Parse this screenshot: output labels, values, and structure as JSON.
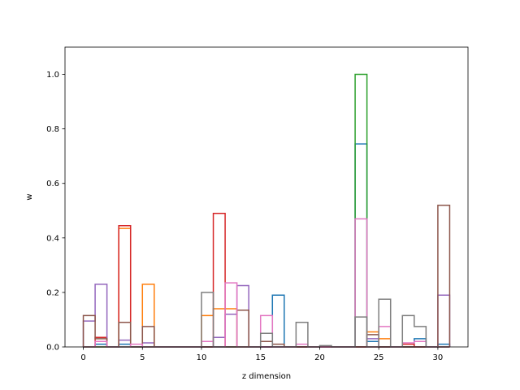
{
  "chart_data": {
    "type": "step-histogram",
    "title": "",
    "xlabel": "z dimension",
    "ylabel": "w",
    "xlim": [
      -1.55,
      32.55
    ],
    "ylim": [
      0,
      1.1
    ],
    "xticks": [
      0,
      5,
      10,
      15,
      20,
      25,
      30
    ],
    "yticks": [
      0.0,
      0.2,
      0.4,
      0.6,
      0.8,
      1.0
    ],
    "ytick_labels": [
      "0.0",
      "0.2",
      "0.4",
      "0.6",
      "0.8",
      "1.0"
    ],
    "bin_edges": [
      0,
      1,
      2,
      3,
      4,
      5,
      6,
      7,
      8,
      9,
      10,
      11,
      12,
      13,
      14,
      15,
      16,
      17,
      18,
      19,
      20,
      21,
      22,
      23,
      24,
      25,
      26,
      27,
      28,
      29,
      30,
      31
    ],
    "series": [
      {
        "color": "#1f77b4",
        "values": [
          0,
          0.01,
          0,
          0.01,
          0,
          0,
          0,
          0,
          0,
          0,
          0,
          0,
          0,
          0,
          0,
          0,
          0.19,
          0,
          0,
          0,
          0,
          0,
          0,
          0.745,
          0.02,
          0,
          0,
          0,
          0.03,
          0,
          0.01
        ]
      },
      {
        "color": "#ff7f0e",
        "values": [
          0,
          0,
          0,
          0.435,
          0,
          0.23,
          0,
          0,
          0,
          0,
          0.115,
          0.14,
          0.14,
          0,
          0,
          0,
          0,
          0,
          0,
          0,
          0,
          0,
          0,
          0,
          0.055,
          0.03,
          0,
          0,
          0,
          0,
          0
        ]
      },
      {
        "color": "#2ca02c",
        "values": [
          0,
          0,
          0,
          0,
          0,
          0,
          0,
          0,
          0,
          0,
          0,
          0,
          0,
          0,
          0,
          0,
          0,
          0,
          0,
          0,
          0,
          0,
          0,
          1.0,
          0,
          0,
          0,
          0,
          0,
          0,
          0
        ]
      },
      {
        "color": "#d62728",
        "values": [
          0,
          0.035,
          0,
          0.445,
          0,
          0,
          0,
          0,
          0,
          0,
          0,
          0.49,
          0,
          0,
          0,
          0,
          0,
          0,
          0,
          0,
          0,
          0,
          0,
          0,
          0,
          0,
          0,
          0.01,
          0,
          0,
          0
        ]
      },
      {
        "color": "#9467bd",
        "values": [
          0.095,
          0.23,
          0,
          0.025,
          0,
          0.015,
          0,
          0,
          0,
          0,
          0,
          0.035,
          0.12,
          0.225,
          0,
          0,
          0,
          0,
          0,
          0,
          0,
          0,
          0,
          0,
          0.03,
          0,
          0,
          0,
          0,
          0,
          0.19
        ]
      },
      {
        "color": "#8c564b",
        "values": [
          0.115,
          0.03,
          0,
          0.09,
          0,
          0.075,
          0,
          0,
          0,
          0,
          0,
          0,
          0,
          0.135,
          0,
          0.02,
          0.01,
          0,
          0,
          0,
          0,
          0,
          0,
          0,
          0.045,
          0,
          0,
          0,
          0,
          0,
          0.52
        ]
      },
      {
        "color": "#e377c2",
        "values": [
          0,
          0.02,
          0,
          0,
          0.01,
          0,
          0,
          0,
          0,
          0,
          0.02,
          0,
          0.235,
          0,
          0,
          0.115,
          0,
          0,
          0.01,
          0,
          0,
          0,
          0,
          0.47,
          0,
          0.075,
          0,
          0.015,
          0.02,
          0,
          0
        ]
      },
      {
        "color": "#7f7f7f",
        "values": [
          0,
          0,
          0,
          0,
          0,
          0,
          0,
          0,
          0,
          0,
          0.2,
          0,
          0,
          0,
          0,
          0.05,
          0,
          0,
          0.09,
          0,
          0.005,
          0,
          0,
          0.11,
          0,
          0.175,
          0,
          0.115,
          0.075,
          0,
          0
        ]
      }
    ]
  }
}
